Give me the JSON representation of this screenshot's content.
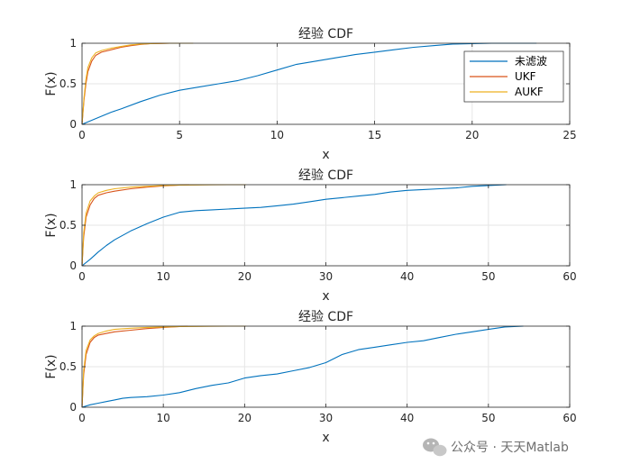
{
  "watermark": "公众号 · 天天Matlab",
  "legend": {
    "entries": [
      {
        "name": "未滤波",
        "color": "#0072BD"
      },
      {
        "name": "UKF",
        "color": "#D95319"
      },
      {
        "name": "AUKF",
        "color": "#EDB120"
      }
    ],
    "placement": "top-right of first subplot"
  },
  "chart_data": [
    {
      "type": "line",
      "title": "经验 CDF",
      "xlabel": "x",
      "ylabel": "F(x)",
      "xlim": [
        0,
        25
      ],
      "ylim": [
        0,
        1
      ],
      "xticks": [
        0,
        5,
        10,
        15,
        20,
        25
      ],
      "yticks": [
        0,
        0.5,
        1
      ],
      "grid": true,
      "series": [
        {
          "name": "未滤波",
          "color": "#0072BD",
          "x": [
            0,
            0.5,
            1,
            1.5,
            2,
            3,
            4,
            5,
            6,
            7,
            8,
            9,
            10,
            11,
            12,
            13,
            14,
            15,
            16,
            17,
            18,
            19,
            20,
            21,
            22,
            23.3
          ],
          "y": [
            0,
            0.05,
            0.1,
            0.15,
            0.19,
            0.28,
            0.36,
            0.42,
            0.46,
            0.5,
            0.54,
            0.6,
            0.67,
            0.74,
            0.78,
            0.82,
            0.86,
            0.89,
            0.92,
            0.95,
            0.97,
            0.99,
            0.995,
            1,
            1,
            1
          ]
        },
        {
          "name": "UKF",
          "color": "#D95319",
          "x": [
            0,
            0.1,
            0.2,
            0.3,
            0.5,
            0.7,
            1,
            1.5,
            2,
            2.5,
            3,
            3.5,
            4,
            4.5
          ],
          "y": [
            0,
            0.3,
            0.5,
            0.65,
            0.78,
            0.85,
            0.89,
            0.92,
            0.95,
            0.97,
            0.985,
            0.995,
            0.998,
            1
          ]
        },
        {
          "name": "AUKF",
          "color": "#EDB120",
          "x": [
            0,
            0.1,
            0.2,
            0.3,
            0.5,
            0.7,
            1,
            1.5,
            2,
            2.5,
            3,
            3.5,
            4,
            4.5,
            5,
            5.7
          ],
          "y": [
            0,
            0.33,
            0.55,
            0.7,
            0.82,
            0.88,
            0.91,
            0.94,
            0.96,
            0.98,
            0.99,
            0.995,
            0.998,
            1,
            1,
            1
          ]
        }
      ]
    },
    {
      "type": "line",
      "title": "经验 CDF",
      "xlabel": "x",
      "ylabel": "F(x)",
      "xlim": [
        0,
        60
      ],
      "ylim": [
        0,
        1
      ],
      "xticks": [
        0,
        10,
        20,
        30,
        40,
        50,
        60
      ],
      "yticks": [
        0,
        0.5,
        1
      ],
      "grid": true,
      "series": [
        {
          "name": "未滤波",
          "color": "#0072BD",
          "x": [
            0,
            1,
            2,
            3,
            4,
            6,
            8,
            10,
            12,
            14,
            16,
            18,
            20,
            22,
            24,
            26,
            28,
            30,
            32,
            34,
            36,
            38,
            40,
            42,
            44,
            46,
            48,
            50,
            52.2
          ],
          "y": [
            0,
            0.08,
            0.17,
            0.25,
            0.32,
            0.43,
            0.52,
            0.6,
            0.66,
            0.68,
            0.69,
            0.7,
            0.71,
            0.72,
            0.74,
            0.76,
            0.79,
            0.82,
            0.84,
            0.86,
            0.88,
            0.91,
            0.93,
            0.94,
            0.95,
            0.96,
            0.98,
            0.99,
            1
          ]
        },
        {
          "name": "UKF",
          "color": "#D95319",
          "x": [
            0,
            0.2,
            0.5,
            1,
            1.5,
            2,
            3,
            4,
            6,
            8,
            10,
            12,
            13.2
          ],
          "y": [
            0,
            0.35,
            0.6,
            0.75,
            0.83,
            0.87,
            0.9,
            0.92,
            0.95,
            0.97,
            0.985,
            0.995,
            1
          ]
        },
        {
          "name": "AUKF",
          "color": "#EDB120",
          "x": [
            0,
            0.2,
            0.5,
            1,
            1.5,
            2,
            3,
            4,
            6,
            8,
            10,
            12,
            14,
            16,
            18,
            20.2
          ],
          "y": [
            0,
            0.4,
            0.65,
            0.8,
            0.86,
            0.9,
            0.93,
            0.95,
            0.97,
            0.98,
            0.99,
            0.995,
            0.997,
            0.999,
            1,
            1
          ]
        }
      ]
    },
    {
      "type": "line",
      "title": "经验 CDF",
      "xlabel": "x",
      "ylabel": "F(x)",
      "xlim": [
        0,
        60
      ],
      "ylim": [
        0,
        1
      ],
      "xticks": [
        0,
        10,
        20,
        30,
        40,
        50,
        60
      ],
      "yticks": [
        0,
        0.5,
        1
      ],
      "grid": true,
      "series": [
        {
          "name": "未滤波",
          "color": "#0072BD",
          "x": [
            0,
            1,
            2,
            3,
            4,
            5,
            6,
            8,
            10,
            12,
            14,
            16,
            18,
            20,
            22,
            24,
            26,
            28,
            30,
            31,
            32,
            34,
            36,
            38,
            40,
            42,
            44,
            46,
            48,
            50,
            52,
            54.3
          ],
          "y": [
            0,
            0.03,
            0.05,
            0.07,
            0.09,
            0.11,
            0.12,
            0.13,
            0.15,
            0.18,
            0.23,
            0.27,
            0.3,
            0.36,
            0.39,
            0.41,
            0.45,
            0.49,
            0.55,
            0.6,
            0.65,
            0.71,
            0.74,
            0.77,
            0.8,
            0.82,
            0.86,
            0.9,
            0.93,
            0.96,
            0.99,
            1
          ]
        },
        {
          "name": "UKF",
          "color": "#D95319",
          "x": [
            0,
            0.2,
            0.5,
            1,
            1.5,
            2,
            3,
            4,
            6,
            8,
            10,
            12,
            13
          ],
          "y": [
            0,
            0.4,
            0.65,
            0.8,
            0.86,
            0.89,
            0.91,
            0.93,
            0.95,
            0.97,
            0.985,
            0.995,
            1
          ]
        },
        {
          "name": "AUKF",
          "color": "#EDB120",
          "x": [
            0,
            0.2,
            0.5,
            1,
            1.5,
            2,
            3,
            4,
            6,
            8,
            10,
            12,
            14,
            16,
            18,
            20.2
          ],
          "y": [
            0,
            0.45,
            0.7,
            0.83,
            0.88,
            0.91,
            0.94,
            0.96,
            0.975,
            0.985,
            0.99,
            0.995,
            0.997,
            0.999,
            1,
            1
          ]
        }
      ]
    }
  ]
}
